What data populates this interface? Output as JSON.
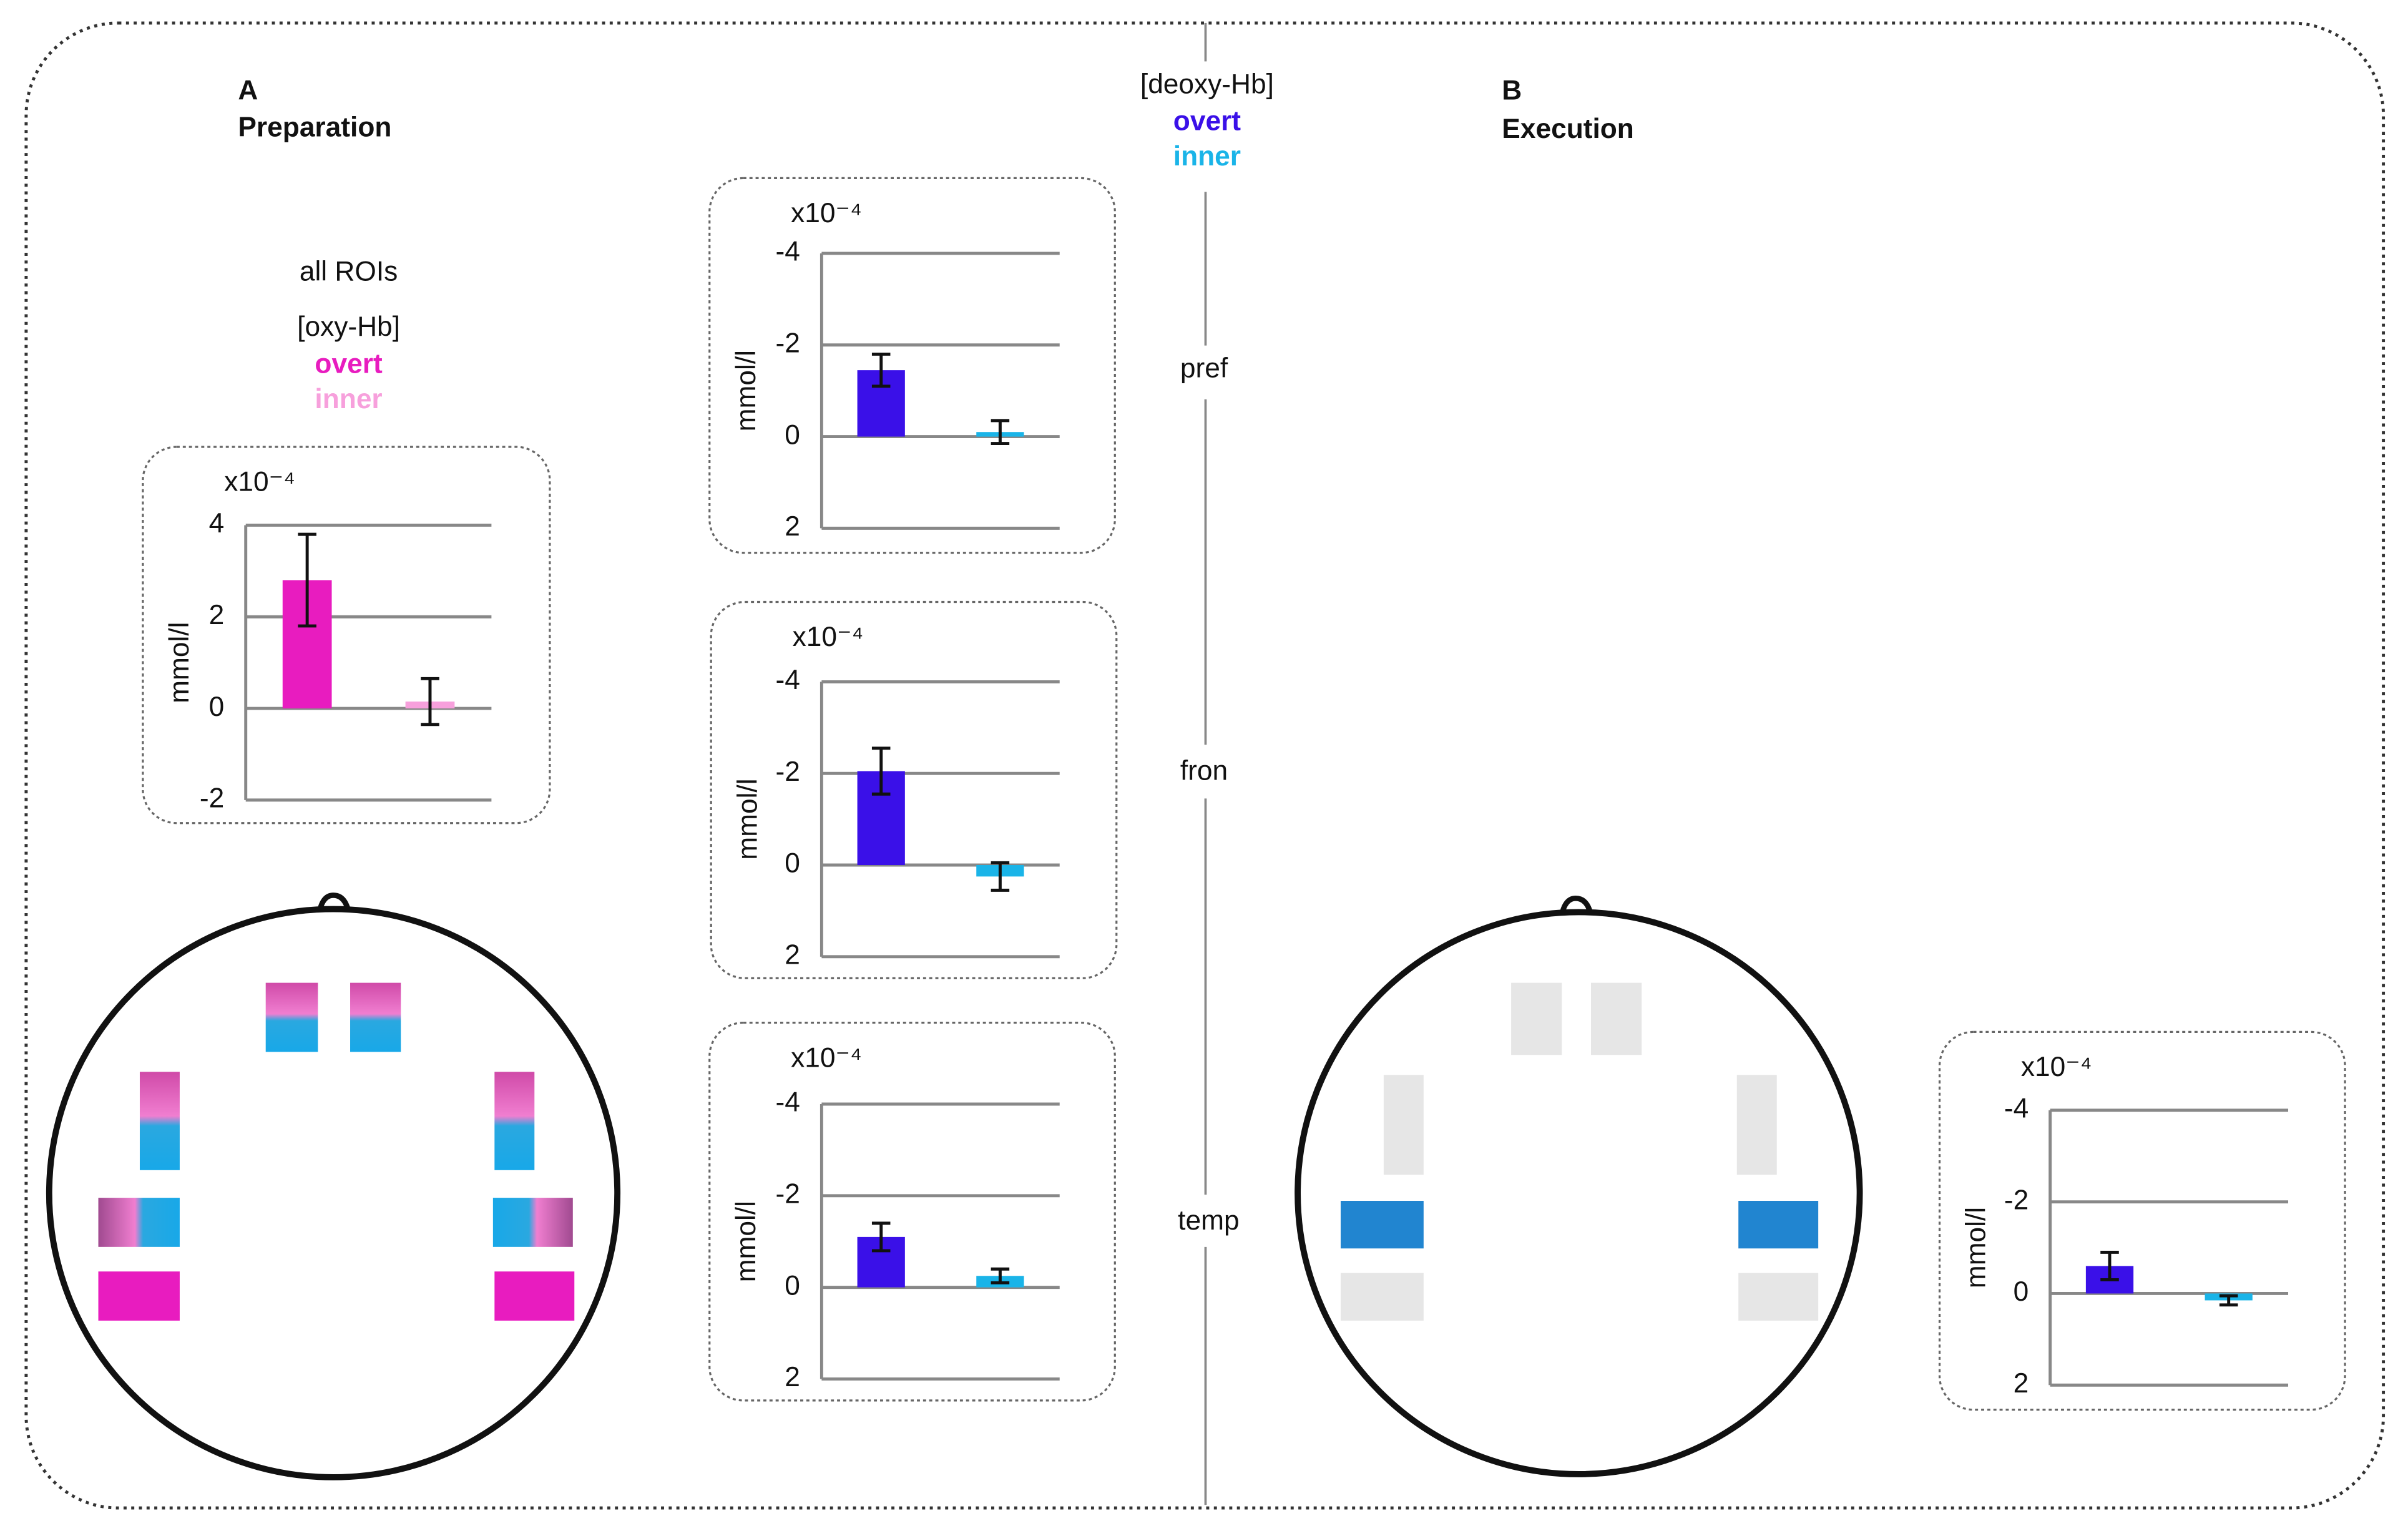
{
  "panel_a": {
    "label": "A",
    "title": "Preparation",
    "roi_label": "all ROIs",
    "measure": "[oxy-Hb]"
  },
  "panel_b": {
    "label": "B",
    "title": "Execution",
    "measure": "[deoxy-Hb]"
  },
  "chart_data": [
    {
      "type": "bar",
      "title": "all ROIs",
      "scale_label": "x10⁻⁴",
      "y_label": "mmol/l",
      "ylim": [
        -2,
        4
      ],
      "yticks": [
        -2,
        0,
        2,
        4
      ],
      "y_inverted": false,
      "grid": true,
      "series": [
        {
          "name": "overt",
          "color": "#e81cbf",
          "values": [
            2.8
          ],
          "errors": [
            1.0
          ]
        },
        {
          "name": "inner",
          "color": "#f7a0dc",
          "values": [
            0.15
          ],
          "errors": [
            0.5
          ]
        }
      ]
    },
    {
      "type": "bar",
      "title": "pref",
      "scale_label": "x10⁻⁴",
      "y_label": "mmol/l",
      "ylim": [
        -4,
        2
      ],
      "yticks": [
        -4,
        -2,
        0,
        2
      ],
      "y_inverted": true,
      "grid": true,
      "series": [
        {
          "name": "overt",
          "color": "#3a10e8",
          "values": [
            -1.45
          ],
          "errors": [
            0.35
          ]
        },
        {
          "name": "inner",
          "color": "#1ab4e8",
          "values": [
            -0.1
          ],
          "errors": [
            0.25
          ]
        }
      ]
    },
    {
      "type": "bar",
      "title": "fron",
      "scale_label": "x10⁻⁴",
      "y_label": "mmol/l",
      "ylim": [
        -4,
        2
      ],
      "yticks": [
        -4,
        -2,
        0,
        2
      ],
      "y_inverted": true,
      "grid": true,
      "series": [
        {
          "name": "overt",
          "color": "#3a10e8",
          "values": [
            -2.05
          ],
          "errors": [
            0.5
          ]
        },
        {
          "name": "inner",
          "color": "#1ab4e8",
          "values": [
            0.25
          ],
          "errors": [
            0.3
          ]
        }
      ]
    },
    {
      "type": "bar",
      "title": "temp",
      "scale_label": "x10⁻⁴",
      "y_label": "mmol/l",
      "ylim": [
        -4,
        2
      ],
      "yticks": [
        -4,
        -2,
        0,
        2
      ],
      "y_inverted": true,
      "grid": true,
      "series": [
        {
          "name": "overt",
          "color": "#3a10e8",
          "values": [
            -1.1
          ],
          "errors": [
            0.3
          ]
        },
        {
          "name": "inner",
          "color": "#1ab4e8",
          "values": [
            -0.25
          ],
          "errors": [
            0.15
          ]
        }
      ]
    },
    {
      "type": "bar",
      "scale_label": "x10⁻⁴",
      "y_label": "mmol/l",
      "ylim": [
        -4,
        2
      ],
      "yticks": [
        -4,
        -2,
        0,
        2
      ],
      "y_inverted": true,
      "grid": true,
      "series": [
        {
          "name": "overt",
          "color": "#3a10e8",
          "values": [
            -0.6
          ],
          "errors": [
            0.3
          ]
        },
        {
          "name": "inner",
          "color": "#1ab4e8",
          "values": [
            0.15
          ],
          "errors": [
            0.1
          ]
        }
      ]
    }
  ]
}
